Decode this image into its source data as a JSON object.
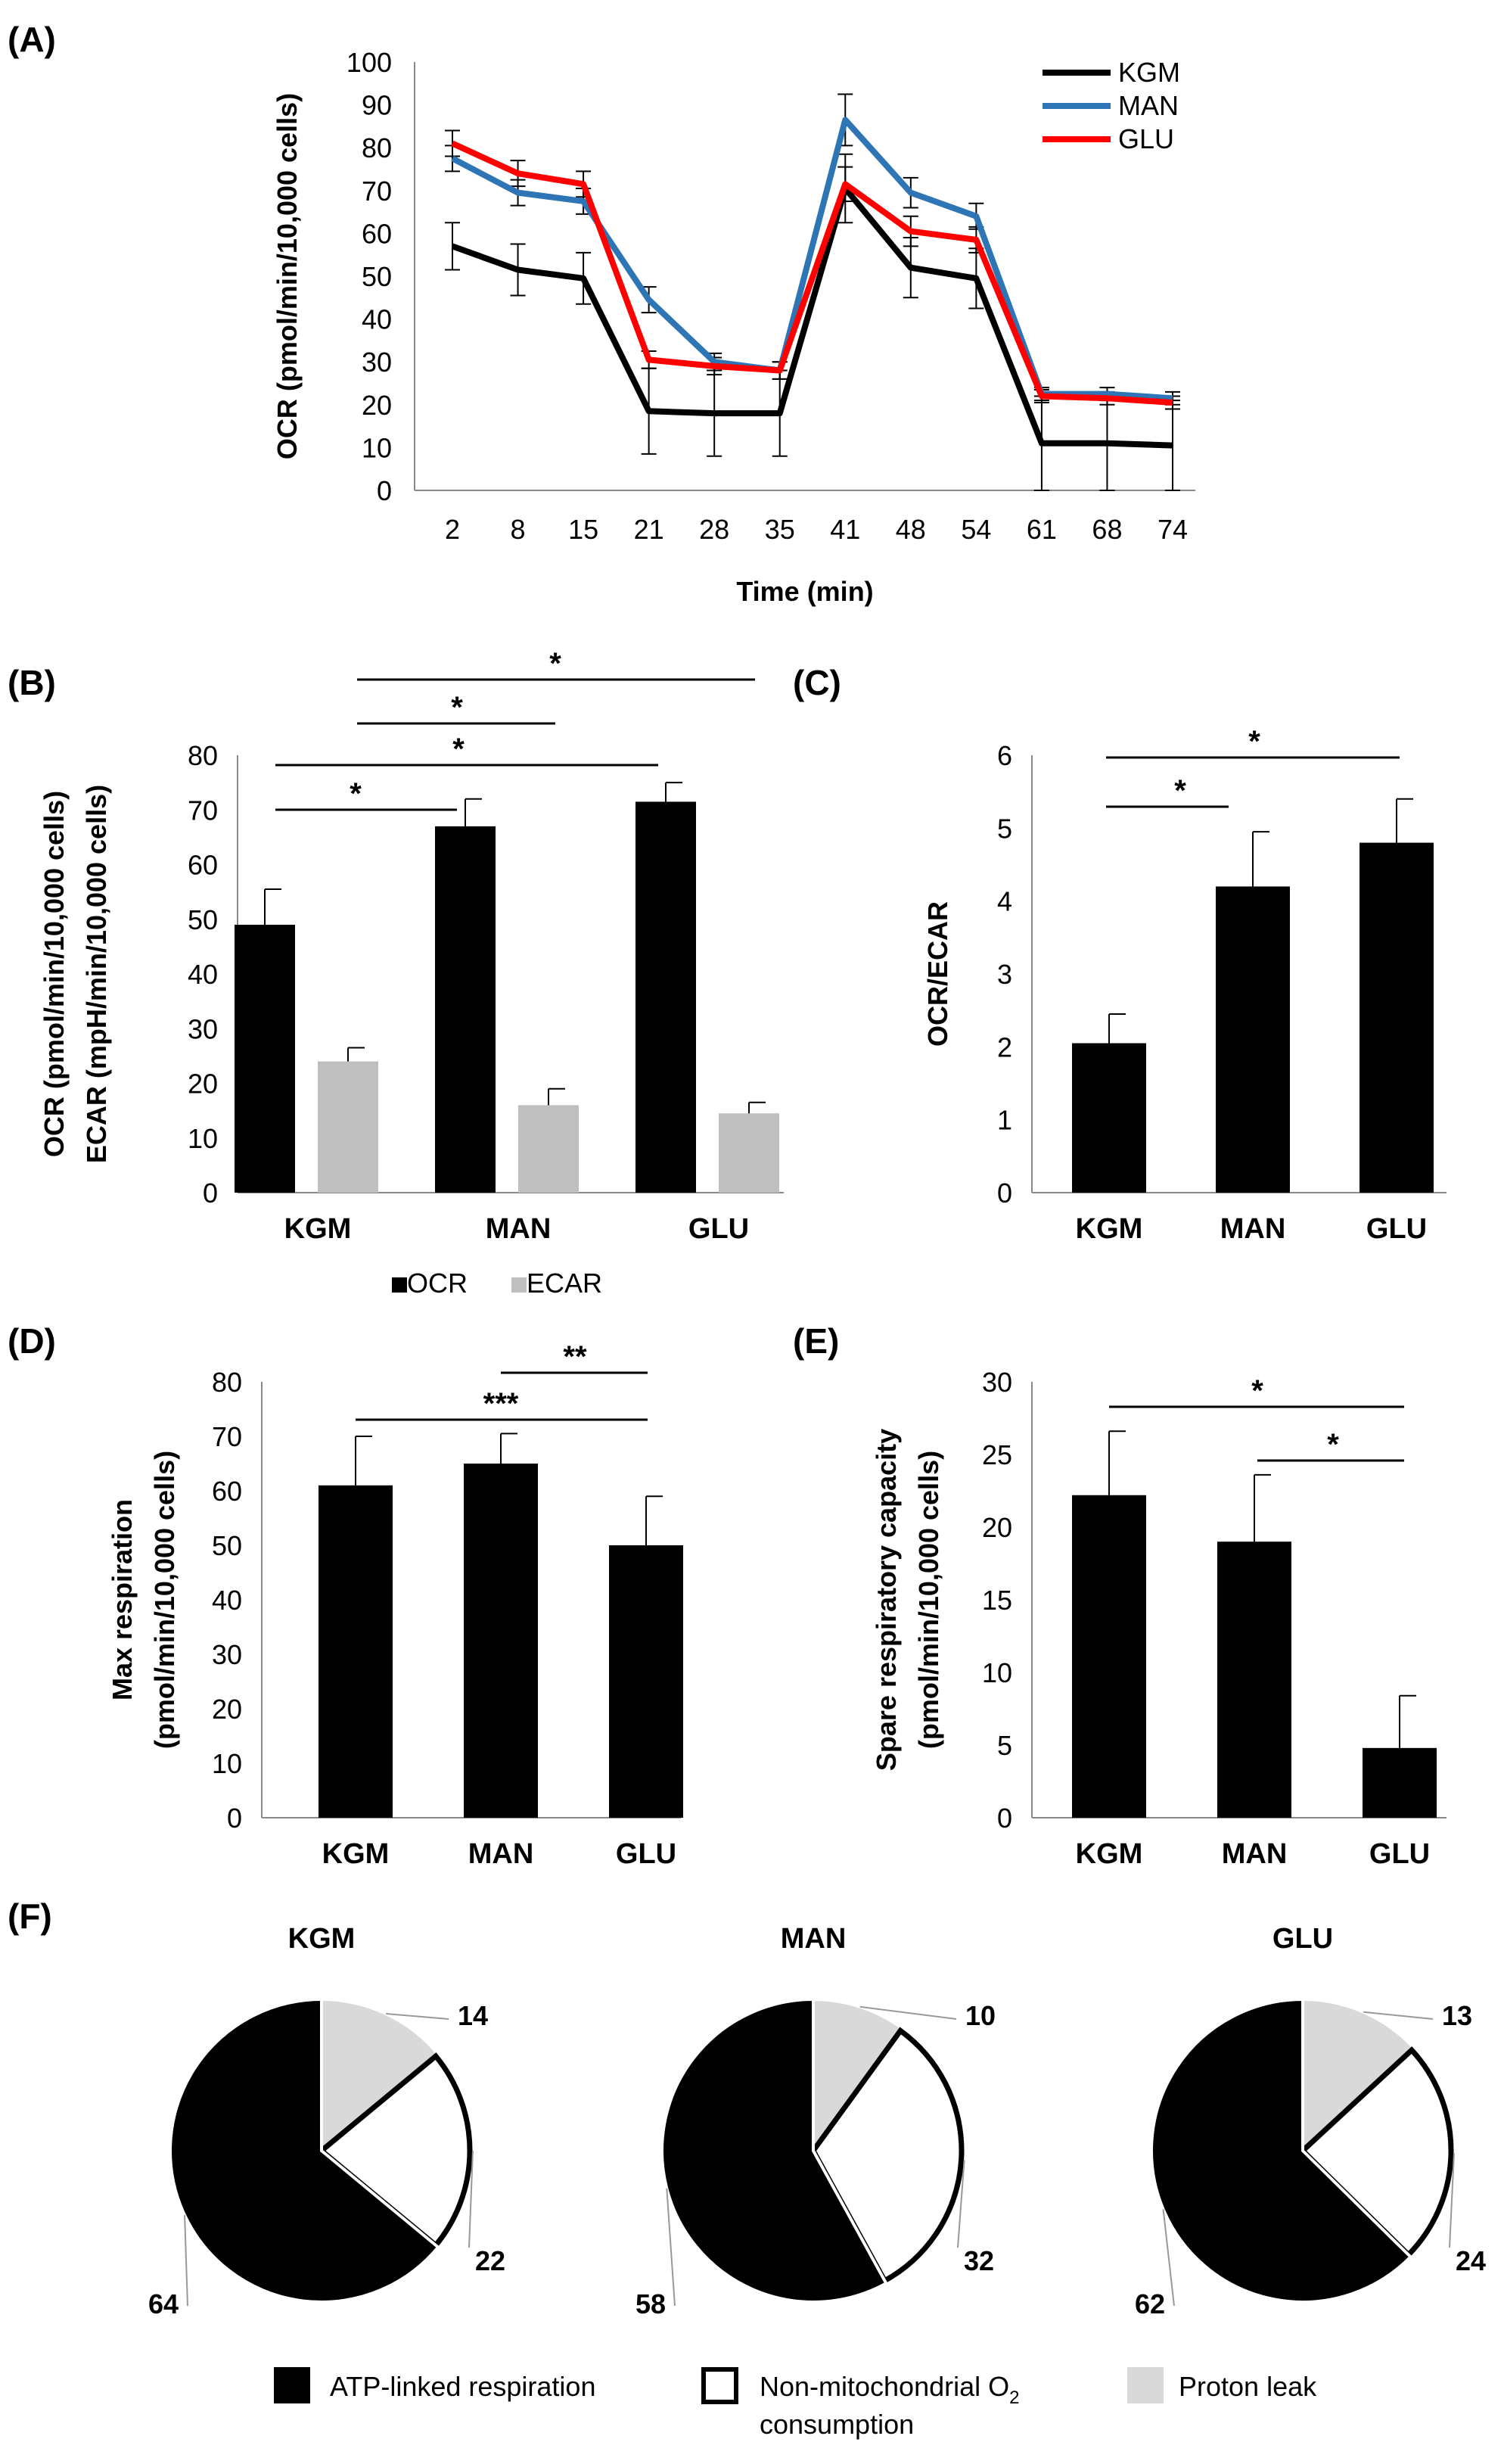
{
  "chart_data": [
    {
      "panel": "(A)",
      "type": "line",
      "x": [
        "2",
        "8",
        "15",
        "21",
        "28",
        "35",
        "41",
        "48",
        "54",
        "61",
        "68",
        "74"
      ],
      "xlabel": "Time (min)",
      "ylabel": "OCR (pmol/min/10,000 cells)",
      "ylim": [
        0,
        100
      ],
      "yticks": [
        "0",
        "10",
        "20",
        "30",
        "40",
        "50",
        "60",
        "70",
        "80",
        "90",
        "100"
      ],
      "series": [
        {
          "name": "KGM",
          "color": "#000000",
          "values": [
            57,
            51.5,
            49.5,
            18.5,
            18,
            18,
            70.5,
            52,
            49.5,
            11,
            11,
            10.5
          ],
          "errors": [
            5.5,
            6,
            6,
            10,
            10,
            10,
            8,
            7,
            7,
            11,
            11,
            10.5
          ]
        },
        {
          "name": "MAN",
          "color": "#2E75B6",
          "values": [
            77.5,
            69.5,
            67.5,
            44.5,
            30,
            28,
            86.5,
            69.5,
            64,
            22.5,
            22.5,
            21.5
          ],
          "errors": [
            3,
            3,
            3,
            3,
            2,
            2,
            6,
            3.5,
            3,
            1.5,
            1.5,
            1.5
          ]
        },
        {
          "name": "GLU",
          "color": "#FF0000",
          "values": [
            81,
            74,
            71.5,
            30.5,
            29,
            28,
            71.5,
            60.5,
            58.5,
            22,
            21.5,
            20.5
          ],
          "errors": [
            3,
            3,
            3,
            2,
            2,
            2,
            4,
            3.5,
            3,
            1.5,
            1.5,
            1.5
          ]
        }
      ]
    },
    {
      "panel": "(B)",
      "type": "bar",
      "categories": [
        "KGM",
        "MAN",
        "GLU"
      ],
      "ylabel": [
        "OCR (pmol/min/10,000 cells)",
        "ECAR (mpH/min/10,000 cells)"
      ],
      "ylim": [
        0,
        80
      ],
      "yticks": [
        "0",
        "10",
        "20",
        "30",
        "40",
        "50",
        "60",
        "70",
        "80"
      ],
      "series": [
        {
          "name": "OCR",
          "color": "#000000",
          "values": [
            49,
            67,
            71.5
          ],
          "errors": [
            6.5,
            5,
            3.5
          ]
        },
        {
          "name": "ECAR",
          "color": "#BFBFBF",
          "values": [
            24,
            16,
            14.5
          ],
          "errors": [
            2.5,
            3,
            2
          ]
        }
      ],
      "significance": [
        {
          "from": "KGM OCR",
          "to": "MAN OCR",
          "label": "*"
        },
        {
          "from": "KGM OCR",
          "to": "GLU OCR",
          "label": "*"
        },
        {
          "from": "KGM ECAR",
          "to": "MAN ECAR",
          "label": "*"
        },
        {
          "from": "KGM ECAR",
          "to": "GLU ECAR",
          "label": "*"
        }
      ]
    },
    {
      "panel": "(C)",
      "type": "bar",
      "categories": [
        "KGM",
        "MAN",
        "GLU"
      ],
      "ylabel": "OCR/ECAR",
      "ylim": [
        0,
        6
      ],
      "yticks": [
        "0",
        "1",
        "2",
        "3",
        "4",
        "5",
        "6"
      ],
      "series": [
        {
          "name": "OCR/ECAR",
          "color": "#000000",
          "values": [
            2.05,
            4.2,
            4.8
          ],
          "errors": [
            0.4,
            0.75,
            0.6
          ]
        }
      ],
      "significance": [
        {
          "from": "KGM",
          "to": "MAN",
          "label": "*"
        },
        {
          "from": "KGM",
          "to": "GLU",
          "label": "*"
        }
      ]
    },
    {
      "panel": "(D)",
      "type": "bar",
      "categories": [
        "KGM",
        "MAN",
        "GLU"
      ],
      "ylabel": [
        "Max respiration",
        "(pmol/min/10,000 cells)"
      ],
      "ylim": [
        0,
        80
      ],
      "yticks": [
        "0",
        "10",
        "20",
        "30",
        "40",
        "50",
        "60",
        "70",
        "80"
      ],
      "series": [
        {
          "name": "Max respiration",
          "color": "#000000",
          "values": [
            61,
            65,
            50
          ],
          "errors": [
            9,
            5.5,
            9
          ]
        }
      ],
      "significance": [
        {
          "from": "KGM",
          "to": "GLU",
          "label": "***"
        },
        {
          "from": "MAN",
          "to": "GLU",
          "label": "**"
        }
      ]
    },
    {
      "panel": "(E)",
      "type": "bar",
      "categories": [
        "KGM",
        "MAN",
        "GLU"
      ],
      "ylabel": [
        "Spare respiratory capacity",
        "(pmol/min/10,000 cells)"
      ],
      "ylim": [
        0,
        30
      ],
      "yticks": [
        "0",
        "5",
        "10",
        "15",
        "20",
        "25",
        "30"
      ],
      "series": [
        {
          "name": "Spare respiratory capacity",
          "color": "#000000",
          "values": [
            22.2,
            19,
            4.8
          ],
          "errors": [
            4.4,
            4.6,
            3.6
          ]
        }
      ],
      "significance": [
        {
          "from": "KGM",
          "to": "GLU",
          "label": "*"
        },
        {
          "from": "MAN",
          "to": "GLU",
          "label": "*"
        }
      ]
    },
    {
      "panel": "(F)",
      "type": "pie",
      "legend": [
        {
          "name": "ATP-linked respiration",
          "color": "#000000"
        },
        {
          "name": "Non-mitochondrial O",
          "subscript": "2",
          "line2": "consumption",
          "color": "#FFFFFF"
        },
        {
          "name": "Proton leak",
          "color": "#D9D9D9"
        }
      ],
      "pies": [
        {
          "title": "KGM",
          "proton_leak": 14,
          "non_mito": 22,
          "atp_linked": 64
        },
        {
          "title": "MAN",
          "proton_leak": 10,
          "non_mito": 32,
          "atp_linked": 58
        },
        {
          "title": "GLU",
          "proton_leak": 13,
          "non_mito": 24,
          "atp_linked": 62
        }
      ]
    }
  ]
}
